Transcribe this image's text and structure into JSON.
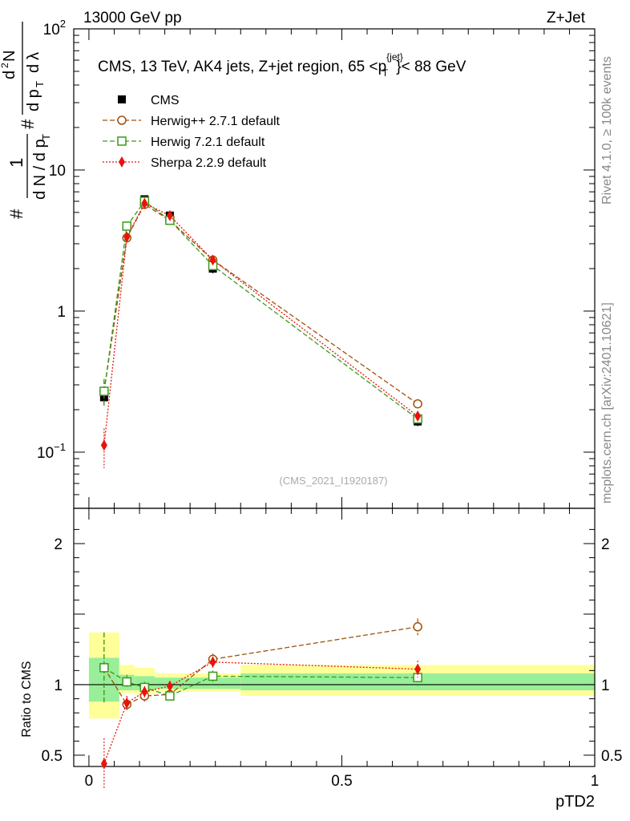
{
  "header": {
    "energy_label": "13000 GeV pp",
    "process_label": "Z+Jet"
  },
  "side_labels": {
    "rivet": "Rivet 4.1.0, ≥ 100k events",
    "mcplots": "mcplots.cern.ch [arXiv:2401.10621]"
  },
  "chart_data": [
    {
      "type": "line",
      "yscale": "log",
      "title_prefix": "CMS, 13 TeV, AK4 jets, Z+jet region, 65 <p",
      "title_sup": "{jet}",
      "title_sub": "T",
      "title_suffix": "}< 88 GeV",
      "ylabel": "1/(dN/dpT) d²N/(dpT dλ)",
      "ylim": [
        0.04,
        100
      ],
      "xlim": [
        -0.03,
        1.0
      ],
      "yticks": [
        {
          "value": 100,
          "label": "10",
          "sup": "2"
        },
        {
          "value": 10,
          "label": "10",
          "sup": ""
        },
        {
          "value": 1,
          "label": "1",
          "sup": ""
        },
        {
          "value": 0.1,
          "label": "10",
          "sup": "−1"
        }
      ],
      "watermark": "(CMS_2021_I1920187)",
      "x": [
        0.03,
        0.075,
        0.11,
        0.16,
        0.245,
        0.65
      ],
      "series": [
        {
          "name": "CMS",
          "color": "#000000",
          "marker": "filled-square",
          "line": "none",
          "values": [
            0.245,
            4.0,
            6.2,
            4.75,
            2.0,
            0.165
          ],
          "err": [
            0.03,
            0.25,
            0.3,
            0.25,
            0.15,
            0.012
          ]
        },
        {
          "name": "Herwig++ 2.7.1 default",
          "color": "#a0520a",
          "marker": "open-circle",
          "line": "dashed",
          "values": [
            0.27,
            3.3,
            5.7,
            4.4,
            2.3,
            0.22
          ],
          "err": [
            0.06,
            0.15,
            0.15,
            0.12,
            0.08,
            0.012
          ]
        },
        {
          "name": "Herwig 7.2.1 default",
          "color": "#3a9a1a",
          "marker": "open-square",
          "line": "dashed",
          "values": [
            0.27,
            4.0,
            6.0,
            4.4,
            2.1,
            0.172
          ],
          "err": [
            0.06,
            0.15,
            0.15,
            0.12,
            0.08,
            0.012
          ]
        },
        {
          "name": "Sherpa 2.2.9 default",
          "color": "#e8140c",
          "marker": "filled-diamond",
          "line": "dotted",
          "values": [
            0.112,
            3.35,
            5.8,
            4.75,
            2.3,
            0.18
          ],
          "err": [
            0.035,
            0.15,
            0.2,
            0.15,
            0.08,
            0.012
          ]
        }
      ]
    },
    {
      "type": "line",
      "ylabel": "Ratio to CMS",
      "xlabel": "pTD2",
      "ylim": [
        0.42,
        2.25
      ],
      "xlim": [
        -0.03,
        1.0
      ],
      "yticks": [
        {
          "value": 2,
          "label": "2"
        },
        {
          "value": 1,
          "label": "1"
        },
        {
          "value": 0.5,
          "label": "0.5"
        }
      ],
      "xticks": [
        {
          "value": 0,
          "label": "0"
        },
        {
          "value": 0.5,
          "label": "0.5"
        },
        {
          "value": 1,
          "label": "1"
        }
      ],
      "bands": {
        "edges": [
          0.0,
          0.06,
          0.09,
          0.13,
          0.19,
          0.3,
          1.0
        ],
        "yellow_lo": [
          0.76,
          0.94,
          0.93,
          0.95,
          0.95,
          0.92
        ],
        "yellow_hi": [
          1.37,
          1.14,
          1.12,
          1.08,
          1.08,
          1.14
        ],
        "green_lo": [
          0.88,
          0.96,
          0.96,
          0.97,
          0.97,
          0.96
        ],
        "green_hi": [
          1.19,
          1.07,
          1.06,
          1.05,
          1.05,
          1.08
        ]
      },
      "x": [
        0.03,
        0.075,
        0.11,
        0.16,
        0.245,
        0.65
      ],
      "series": [
        {
          "name": "Herwig++ 2.7.1 default",
          "color": "#a0520a",
          "marker": "open-circle",
          "line": "dashed",
          "values": [
            1.12,
            0.86,
            0.92,
            0.93,
            1.18,
            1.41
          ],
          "err": [
            0.25,
            0.05,
            0.04,
            0.03,
            0.04,
            0.06
          ]
        },
        {
          "name": "Herwig 7.2.1 default",
          "color": "#3a9a1a",
          "marker": "open-square",
          "line": "dashed",
          "values": [
            1.12,
            1.02,
            0.98,
            0.92,
            1.06,
            1.05
          ],
          "err": [
            0.25,
            0.05,
            0.04,
            0.03,
            0.04,
            0.06
          ]
        },
        {
          "name": "Sherpa 2.2.9 default",
          "color": "#e8140c",
          "marker": "filled-diamond",
          "line": "dotted",
          "values": [
            0.44,
            0.87,
            0.95,
            0.99,
            1.16,
            1.11
          ],
          "err": [
            0.18,
            0.05,
            0.04,
            0.03,
            0.04,
            0.06
          ]
        }
      ]
    }
  ]
}
